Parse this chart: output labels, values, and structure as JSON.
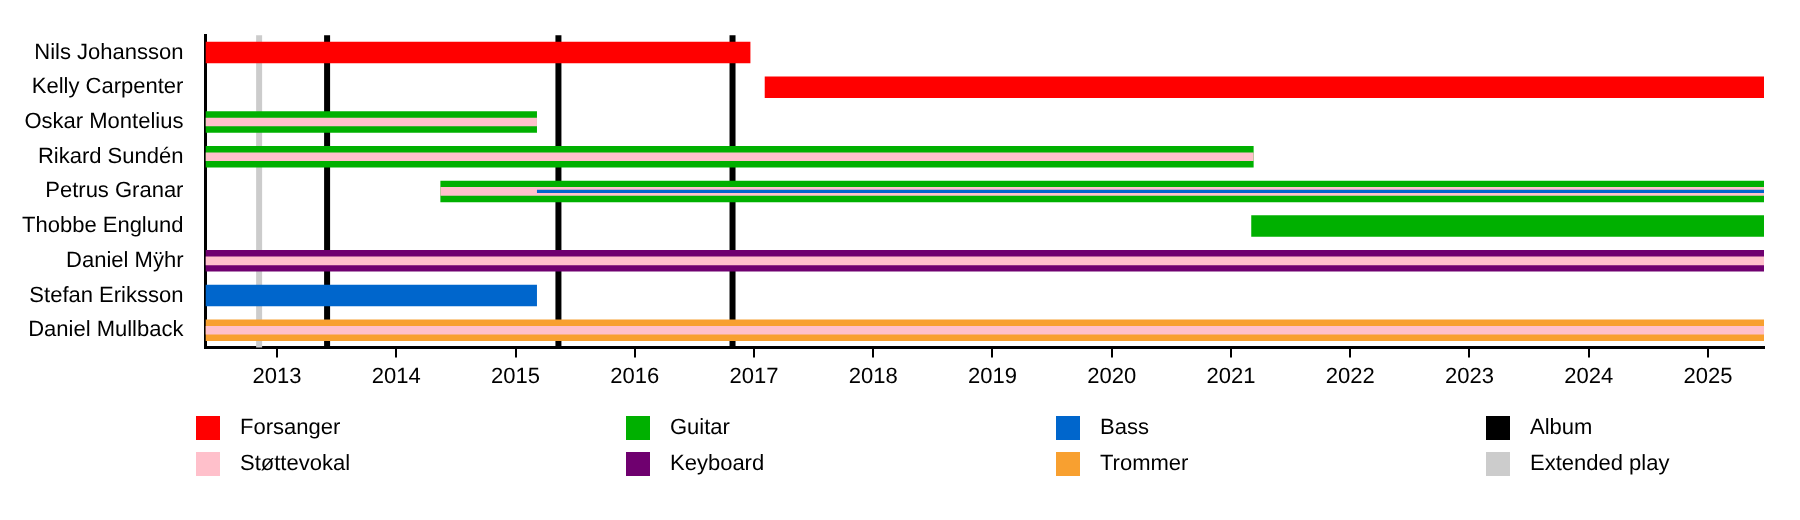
{
  "chart_data": {
    "type": "bar",
    "orientation": "horizontal",
    "categories": [
      "Nils Johansson",
      "Kelly Carpenter",
      "Oskar Montelius",
      "Rikard Sundén",
      "Petrus Granar",
      "Thobbe Englund",
      "Daniel Mÿhr",
      "Stefan Eriksson",
      "Daniel Mullback"
    ],
    "series": [
      {
        "name": "Forsanger",
        "color": "#ff0000",
        "base": [
          2012.4,
          2017.09,
          null,
          null,
          null,
          null,
          null,
          null,
          null
        ],
        "values": [
          4.57,
          8.38,
          null,
          null,
          null,
          null,
          null,
          null,
          null
        ]
      },
      {
        "name": "Støttevokal",
        "color": "#ffc0cb",
        "base": [
          null,
          null,
          2012.4,
          2012.4,
          2014.37,
          null,
          2012.4,
          null,
          2012.4
        ],
        "values": [
          null,
          null,
          2.78,
          8.79,
          11.1,
          null,
          13.07,
          null,
          13.07
        ]
      },
      {
        "name": "Guitar",
        "color": "#00b000",
        "base": [
          null,
          null,
          2012.4,
          2012.4,
          2014.37,
          2021.17,
          null,
          null,
          null
        ],
        "values": [
          null,
          null,
          2.78,
          8.79,
          11.1,
          4.3,
          null,
          null,
          null
        ]
      },
      {
        "name": "Keyboard",
        "color": "#6f006f",
        "base": [
          null,
          null,
          null,
          null,
          null,
          null,
          2012.4,
          null,
          null
        ],
        "values": [
          null,
          null,
          null,
          null,
          null,
          null,
          13.07,
          null,
          null
        ]
      },
      {
        "name": "Bass",
        "color": "#0066cc",
        "base": [
          null,
          null,
          null,
          null,
          2015.18,
          null,
          null,
          2012.4,
          null
        ],
        "values": [
          null,
          null,
          null,
          null,
          10.29,
          null,
          null,
          2.78,
          null
        ]
      },
      {
        "name": "Trommer",
        "color": "#f8a030",
        "base": [
          null,
          null,
          null,
          null,
          null,
          null,
          null,
          null,
          2012.4
        ],
        "values": [
          null,
          null,
          null,
          null,
          null,
          null,
          null,
          null,
          13.07
        ]
      }
    ],
    "ref_lines": [
      {
        "axis": "x",
        "value": 2013.42,
        "label": "Album",
        "color": "#000000"
      },
      {
        "axis": "x",
        "value": 2015.36,
        "color": "#000000"
      },
      {
        "axis": "x",
        "value": 2016.82,
        "color": "#000000"
      },
      {
        "axis": "x",
        "value": 2012.85,
        "label": "Extended play",
        "color": "#cccccc"
      }
    ],
    "xlim": [
      2012.4,
      2025.47
    ],
    "xticks": [
      2013,
      2014,
      2015,
      2016,
      2017,
      2018,
      2019,
      2020,
      2021,
      2022,
      2023,
      2024,
      2025
    ],
    "grid": false,
    "legend": "bottom"
  }
}
